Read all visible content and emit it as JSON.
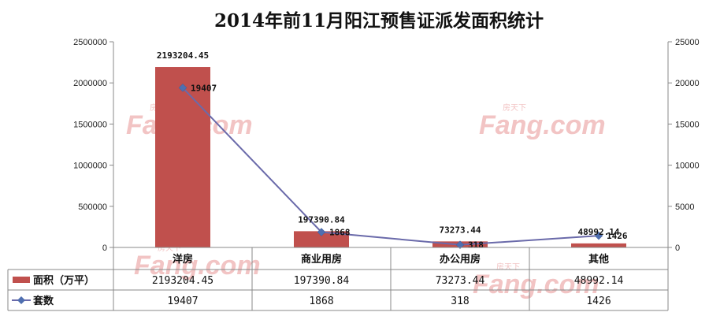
{
  "chart_data": {
    "type": "bar",
    "title": "2014年前11月阳江预售证派发面积统计",
    "categories": [
      "洋房",
      "商业用房",
      "办公用房",
      "其他"
    ],
    "series": [
      {
        "name": "面积（万平）",
        "type": "bar",
        "axis": "left",
        "color": "#c0504d",
        "values": [
          2193204.45,
          197390.84,
          73273.44,
          48992.14
        ],
        "value_labels": [
          "2193204.45",
          "197390.84",
          "73273.44",
          "48992.14"
        ]
      },
      {
        "name": "套数",
        "type": "line",
        "axis": "right",
        "color": "#6a6aaa",
        "marker_color": "#4f6fb0",
        "values": [
          19407,
          1868,
          318,
          1426
        ],
        "value_labels": [
          "19407",
          "1868",
          "318",
          "1426"
        ]
      }
    ],
    "y_left": {
      "ylim": [
        0,
        2500000
      ],
      "ticks": [
        0,
        500000,
        1000000,
        1500000,
        2000000,
        2500000
      ],
      "tick_labels": [
        "0",
        "500000",
        "1000000",
        "1500000",
        "2000000",
        "2500000"
      ]
    },
    "y_right": {
      "ylim": [
        0,
        25000
      ],
      "ticks": [
        0,
        5000,
        10000,
        15000,
        20000,
        25000
      ],
      "tick_labels": [
        "0",
        "5000",
        "10000",
        "15000",
        "20000",
        "25000"
      ]
    },
    "grid": false,
    "legend": "data-table",
    "data_table": true
  },
  "watermark": {
    "brand": "Fang.com",
    "cn": "房天下",
    "color": "#f2c4c4"
  }
}
